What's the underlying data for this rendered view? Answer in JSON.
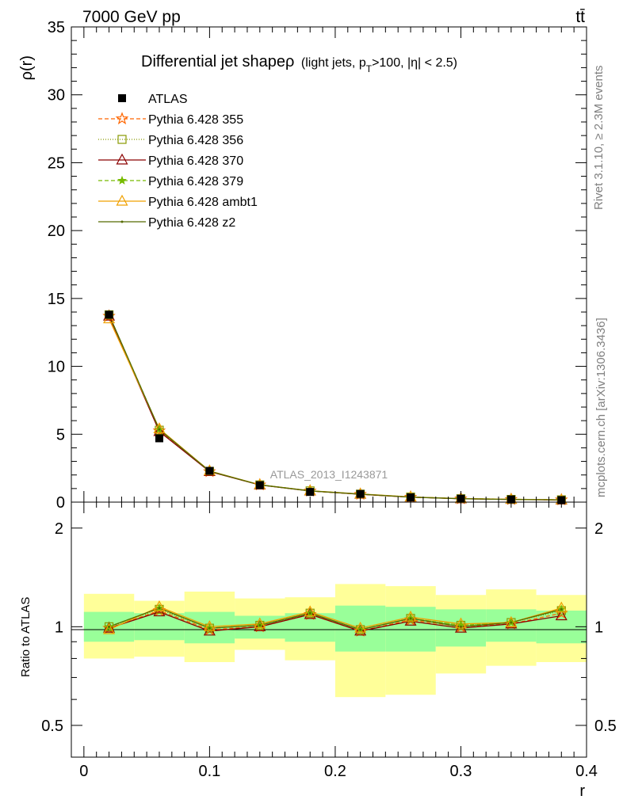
{
  "header": {
    "energy_label": "7000 GeV pp",
    "process_label": "tt̄"
  },
  "side_labels": {
    "rivet": "Rivet 3.1.10, ≥ 2.3M events",
    "mcplots": "mcplots.cern.ch [arXiv:1306.3436]"
  },
  "chart_data": [
    {
      "type": "line",
      "panel": "main",
      "title": "Differential jet shapeρ",
      "title_suffix": "(light jets, p",
      "title_sub": "T",
      "title_rest": ">100, |η| < 2.5)",
      "watermark": "ATLAS_2013_I1243871",
      "ylabel": "ρ(r)",
      "xlabel": "r",
      "xlim": [
        -0.01,
        0.4
      ],
      "ylim": [
        0,
        35
      ],
      "x_ticks": [
        "0",
        "0.1",
        "0.2",
        "0.3",
        "0.4"
      ],
      "y_ticks": [
        "0",
        "5",
        "10",
        "15",
        "20",
        "25",
        "30",
        "35"
      ],
      "x": [
        0.02,
        0.06,
        0.1,
        0.14,
        0.18,
        0.22,
        0.26,
        0.3,
        0.34,
        0.38
      ],
      "data": {
        "name": "ATLAS",
        "values": [
          13.8,
          4.7,
          2.3,
          1.25,
          0.75,
          0.6,
          0.35,
          0.25,
          0.2,
          0.15
        ]
      },
      "series": [
        {
          "name": "Pythia 6.428 355",
          "color": "#ff6600",
          "dash": "5,3",
          "marker": "star",
          "values": [
            13.7,
            5.25,
            2.25,
            1.27,
            0.82,
            0.58,
            0.37,
            0.25,
            0.2,
            0.17
          ]
        },
        {
          "name": "Pythia 6.428 356",
          "color": "#889900",
          "dash": "1,2",
          "marker": "square",
          "values": [
            13.8,
            5.3,
            2.27,
            1.27,
            0.83,
            0.59,
            0.38,
            0.25,
            0.2,
            0.17
          ]
        },
        {
          "name": "Pythia 6.428 370",
          "color": "#8b0000",
          "dash": "",
          "marker": "triangle",
          "values": [
            13.7,
            5.2,
            2.25,
            1.26,
            0.82,
            0.58,
            0.37,
            0.25,
            0.2,
            0.16
          ]
        },
        {
          "name": "Pythia 6.428 379",
          "color": "#77bb00",
          "dash": "5,3",
          "marker": "star-small",
          "values": [
            13.8,
            5.35,
            2.28,
            1.28,
            0.83,
            0.59,
            0.38,
            0.26,
            0.21,
            0.17
          ]
        },
        {
          "name": "Pythia 6.428 ambt1",
          "color": "#f0a000",
          "dash": "",
          "marker": "triangle",
          "values": [
            13.5,
            5.4,
            2.3,
            1.28,
            0.84,
            0.6,
            0.38,
            0.26,
            0.21,
            0.17
          ]
        },
        {
          "name": "Pythia 6.428 z2",
          "color": "#556b00",
          "dash": "",
          "marker": "dot",
          "values": [
            13.8,
            5.35,
            2.28,
            1.27,
            0.83,
            0.59,
            0.37,
            0.25,
            0.2,
            0.17
          ]
        }
      ]
    },
    {
      "type": "line",
      "panel": "ratio",
      "ylabel": "Ratio to ATLAS",
      "xlabel": "r",
      "xlim": [
        -0.01,
        0.4
      ],
      "ylim": [
        0.4,
        2.4
      ],
      "y_scale": "log",
      "y_ticks": [
        "0.5",
        "1",
        "2"
      ],
      "x": [
        0.02,
        0.06,
        0.1,
        0.14,
        0.18,
        0.22,
        0.26,
        0.3,
        0.34,
        0.38
      ],
      "bin_edges": [
        0.0,
        0.04,
        0.08,
        0.12,
        0.16,
        0.2,
        0.24,
        0.28,
        0.32,
        0.36,
        0.4
      ],
      "band_inner": {
        "color": "#99ff99",
        "lo": [
          0.9,
          0.91,
          0.89,
          0.92,
          0.9,
          0.84,
          0.84,
          0.87,
          0.9,
          0.89
        ],
        "hi": [
          1.11,
          1.1,
          1.11,
          1.08,
          1.1,
          1.16,
          1.15,
          1.13,
          1.13,
          1.12
        ]
      },
      "band_outer": {
        "color": "#ffff99",
        "lo": [
          0.8,
          0.81,
          0.78,
          0.85,
          0.79,
          0.61,
          0.62,
          0.72,
          0.76,
          0.78
        ],
        "hi": [
          1.26,
          1.2,
          1.28,
          1.22,
          1.23,
          1.35,
          1.33,
          1.25,
          1.3,
          1.25
        ]
      },
      "series": [
        {
          "name": "Pythia 6.428 355",
          "values": [
            0.99,
            1.12,
            0.98,
            1.0,
            1.09,
            0.97,
            1.05,
            1.0,
            1.02,
            1.1
          ]
        },
        {
          "name": "Pythia 6.428 356",
          "values": [
            1.0,
            1.13,
            0.99,
            1.01,
            1.1,
            0.98,
            1.06,
            1.01,
            1.03,
            1.12
          ]
        },
        {
          "name": "Pythia 6.428 370",
          "values": [
            0.99,
            1.11,
            0.97,
            1.0,
            1.09,
            0.97,
            1.04,
            0.99,
            1.02,
            1.08
          ]
        },
        {
          "name": "Pythia 6.428 379",
          "values": [
            1.0,
            1.14,
            0.99,
            1.01,
            1.1,
            0.98,
            1.06,
            1.01,
            1.03,
            1.13
          ]
        },
        {
          "name": "Pythia 6.428 ambt1",
          "values": [
            0.98,
            1.15,
            1.0,
            1.02,
            1.11,
            0.99,
            1.07,
            1.02,
            1.03,
            1.14
          ]
        },
        {
          "name": "Pythia 6.428 z2",
          "values": [
            1.0,
            1.14,
            0.99,
            1.01,
            1.1,
            0.98,
            1.06,
            1.0,
            1.03,
            1.13
          ]
        }
      ]
    }
  ]
}
